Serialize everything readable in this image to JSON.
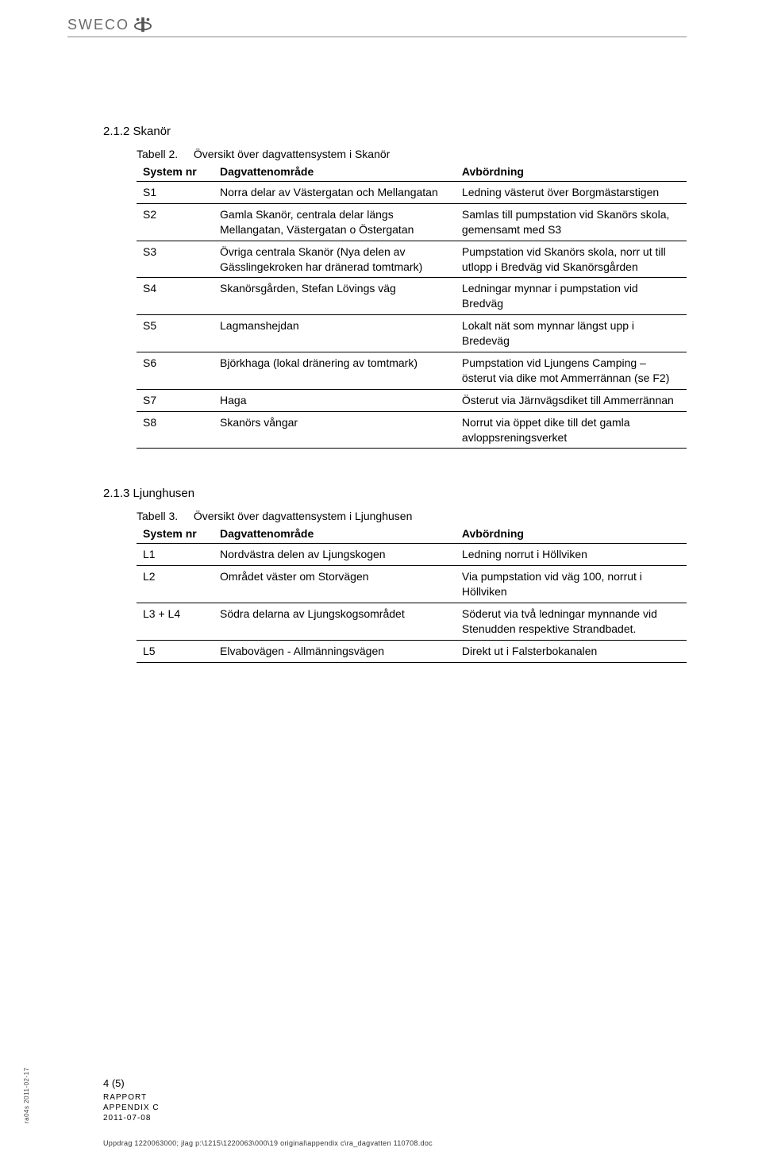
{
  "logo": {
    "text": "SWECO"
  },
  "section1": {
    "heading": "2.1.2 Skanör",
    "caption_label": "Tabell 2.",
    "caption_text": "Översikt över dagvattensystem i Skanör",
    "columns": [
      "System nr",
      "Dagvattenområde",
      "Avbördning"
    ],
    "rows": [
      [
        "S1",
        "Norra delar av Västergatan och Mellangatan",
        "Ledning västerut över Borgmästarstigen"
      ],
      [
        "S2",
        "Gamla Skanör, centrala delar längs Mellangatan, Västergatan o Östergatan",
        "Samlas till pumpstation vid Skanörs skola, gemensamt med S3"
      ],
      [
        "S3",
        "Övriga centrala Skanör (Nya delen av Gässlingekroken har dränerad tomtmark)",
        "Pumpstation vid Skanörs skola, norr ut till utlopp i Bredväg vid Skanörsgården"
      ],
      [
        "S4",
        "Skanörsgården, Stefan Lövings väg",
        "Ledningar mynnar i pumpstation vid Bredväg"
      ],
      [
        "S5",
        "Lagmanshejdan",
        "Lokalt nät som mynnar längst upp i Bredeväg"
      ],
      [
        "S6",
        "Björkhaga (lokal dränering av tomtmark)",
        "Pumpstation vid Ljungens Camping – österut via dike mot Ammerrännan (se F2)"
      ],
      [
        "S7",
        "Haga",
        "Österut via Järnvägsdiket till Ammerrännan"
      ],
      [
        "S8",
        "Skanörs vångar",
        "Norrut via öppet dike till det gamla avloppsreningsverket"
      ]
    ]
  },
  "section2": {
    "heading": "2.1.3 Ljunghusen",
    "caption_label": "Tabell 3.",
    "caption_text": "Översikt över dagvattensystem i Ljunghusen",
    "columns": [
      "System nr",
      "Dagvattenområde",
      "Avbördning"
    ],
    "rows": [
      [
        "L1",
        "Nordvästra delen av Ljungskogen",
        "Ledning norrut i Höllviken"
      ],
      [
        "L2",
        "Området väster om Storvägen",
        "Via pumpstation vid väg 100, norrut i Höllviken"
      ],
      [
        "L3 + L4",
        "Södra delarna av Ljungskogsområdet",
        "Söderut via två ledningar mynnande vid Stenudden respektive Strandbadet."
      ],
      [
        "L5",
        "Elvabovägen - Allmänningsvägen",
        "Direkt ut i Falsterbokanalen"
      ]
    ]
  },
  "footer": {
    "page": "4 (5)",
    "report": "RAPPORT",
    "appendix": "APPENDIX C",
    "date": "2011-07-08"
  },
  "side": "ra04s 2011-02-17",
  "path": "Uppdrag 1220063000; jlag  p:\\1215\\1220063\\000\\19 original\\appendix c\\ra_dagvatten 110708.doc"
}
